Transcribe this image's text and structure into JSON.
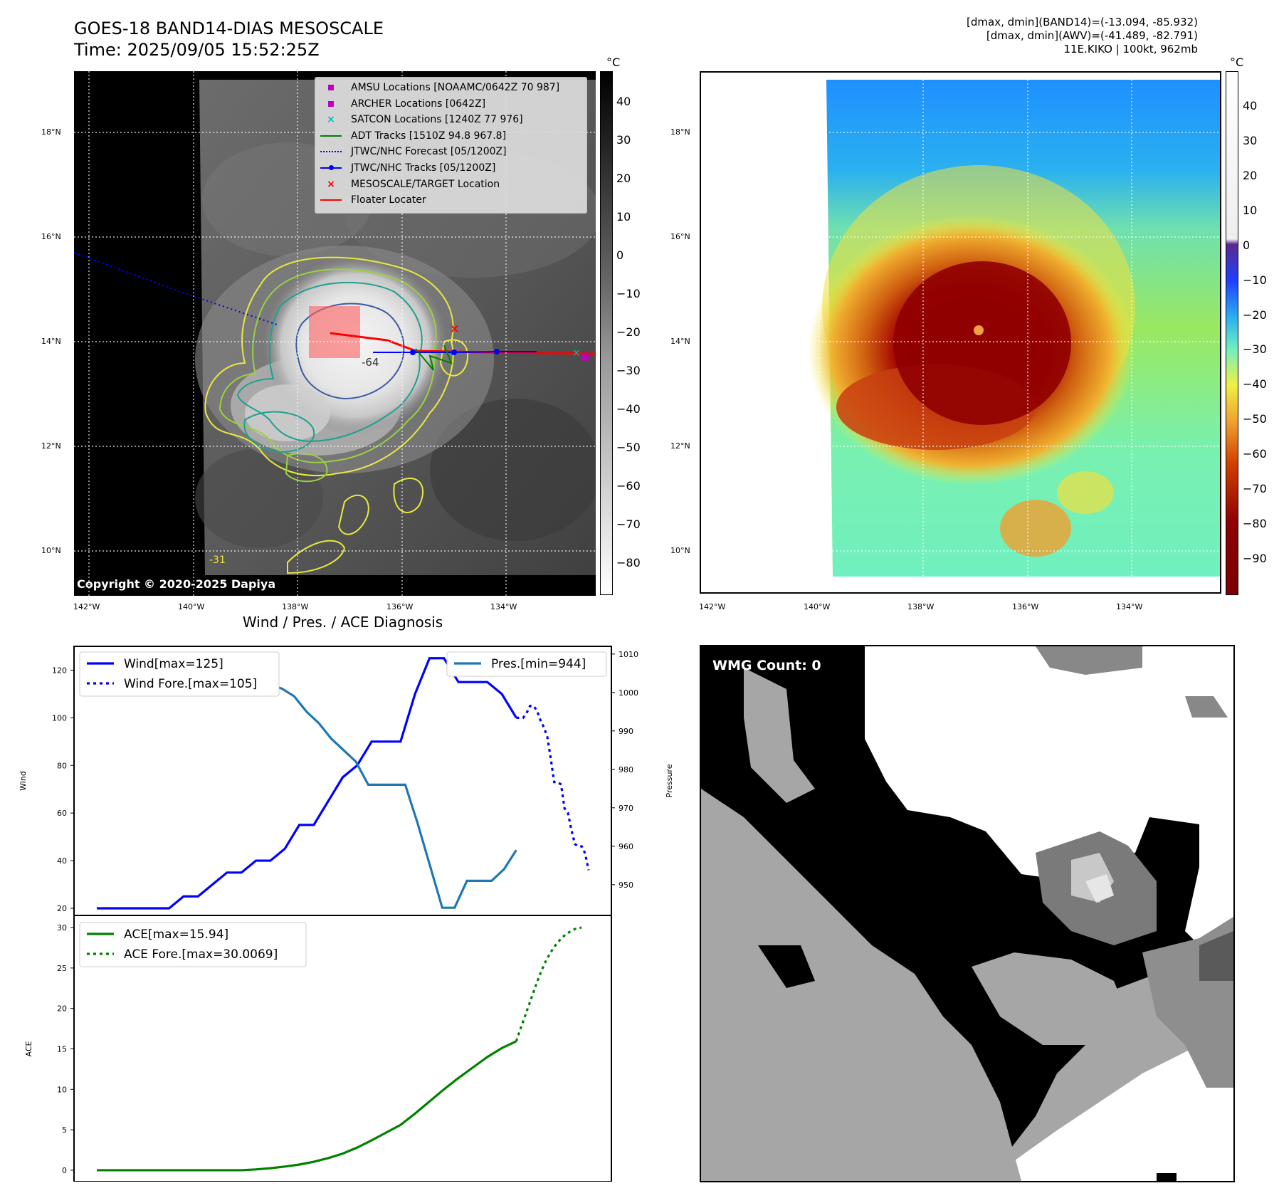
{
  "header": {
    "title_line1": "GOES-18 BAND14-DIAS MESOSCALE",
    "title_line2": "Time: 2025/09/05 15:52:25Z",
    "info_line1": "[dmax, dmin](BAND14)=(-13.094, -85.932)",
    "info_line2": "[dmax, dmin](AWV)=(-41.489, -82.791)",
    "info_line3": "11E.KIKO | 100kt, 962mb"
  },
  "maps": {
    "lon_ticks": [
      "142°W",
      "140°W",
      "138°W",
      "136°W",
      "134°W"
    ],
    "lat_ticks": [
      "18°N",
      "16°N",
      "14°N",
      "12°N",
      "10°N"
    ],
    "copyright": "Copyright © 2020-2025 Dapiya",
    "legend": [
      {
        "label": "AMSU Locations [NOAAMC/0642Z 70 987]",
        "color": "#c000c0",
        "marker": "square"
      },
      {
        "label": "ARCHER Locations [0642Z]",
        "color": "#c000c0",
        "marker": "square"
      },
      {
        "label": "SATCON Locations [1240Z 77 976]",
        "color": "#00bfbf",
        "marker": "x"
      },
      {
        "label": "ADT Tracks [1510Z 94.8 967.8]",
        "color": "#008000",
        "marker": "line"
      },
      {
        "label": "JTWC/NHC Forecast [05/1200Z]",
        "color": "#0000ff",
        "marker": "dotted"
      },
      {
        "label": "JTWC/NHC Tracks [05/1200Z]",
        "color": "#0000ff",
        "marker": "line-dot"
      },
      {
        "label": "MESOSCALE/TARGET Location",
        "color": "#ff0000",
        "marker": "x"
      },
      {
        "label": "Floater Locater",
        "color": "#ff0000",
        "marker": "line"
      }
    ],
    "contour_labels": [
      "-64",
      "-31"
    ],
    "colorbar_left": {
      "unit": "°C",
      "ticks": [
        "40",
        "30",
        "20",
        "10",
        "0",
        "−10",
        "−20",
        "−30",
        "−40",
        "−50",
        "−60",
        "−70",
        "−80"
      ]
    },
    "colorbar_right": {
      "unit": "°C",
      "ticks": [
        "40",
        "30",
        "20",
        "10",
        "0",
        "−10",
        "−20",
        "−30",
        "−40",
        "−50",
        "−60",
        "−70",
        "−80",
        "−90"
      ]
    }
  },
  "wmg": {
    "label": "WMG Count: 0"
  },
  "chart_data": [
    {
      "type": "line",
      "title": "Wind / Pres. / ACE Diagnosis",
      "ylabel": "Wind",
      "ylim": [
        17,
        130
      ],
      "yticks": [
        20,
        40,
        60,
        80,
        100,
        120
      ],
      "y2label": "Pressure",
      "y2lim": [
        942,
        1012
      ],
      "y2ticks": [
        950,
        960,
        970,
        980,
        990,
        1000,
        1010
      ],
      "legend": [
        "Wind[max=125]",
        "Wind Fore.[max=105]",
        "Pres.[min=944]"
      ],
      "series": [
        {
          "name": "Wind[max=125]",
          "axis": "left",
          "style": "solid",
          "color": "#0000ff",
          "values": [
            20,
            20,
            20,
            20,
            20,
            20,
            25,
            25,
            30,
            35,
            35,
            40,
            40,
            45,
            55,
            55,
            65,
            75,
            80,
            90,
            90,
            90,
            110,
            125,
            125,
            115,
            115,
            115,
            110,
            100
          ]
        },
        {
          "name": "Wind Fore.[max=105]",
          "axis": "left",
          "style": "dotted",
          "color": "#0000ff",
          "values": [
            100,
            100,
            100,
            102,
            105,
            105,
            103,
            99,
            96,
            92,
            83,
            73,
            73,
            72,
            62,
            60,
            53,
            47,
            46,
            46,
            43,
            36
          ]
        },
        {
          "name": "Pres.[min=944]",
          "axis": "right",
          "style": "solid",
          "color": "#1f77b4",
          "values": [
            1010,
            1010,
            1010,
            1010,
            1010,
            1010,
            1010,
            1010,
            1010,
            1010,
            1009,
            1008,
            1007,
            1005,
            1002,
            1001,
            999,
            995,
            992,
            988,
            985,
            982,
            976,
            976,
            976,
            976,
            966,
            955,
            944,
            944,
            951,
            951,
            951,
            954,
            959
          ]
        }
      ]
    },
    {
      "type": "line",
      "ylabel": "ACE",
      "ylim": [
        -1.5,
        31.5
      ],
      "yticks": [
        0,
        5,
        10,
        15,
        20,
        25,
        30
      ],
      "legend": [
        "ACE[max=15.94]",
        "ACE Fore.[max=30.0069]"
      ],
      "series": [
        {
          "name": "ACE[max=15.94]",
          "style": "solid",
          "color": "#008000",
          "values": [
            0,
            0,
            0,
            0,
            0,
            0,
            0,
            0,
            0,
            0,
            0,
            0.1,
            0.25,
            0.45,
            0.7,
            1.05,
            1.5,
            2.05,
            2.8,
            3.7,
            4.65,
            5.6,
            7.0,
            8.5,
            10.0,
            11.4,
            12.7,
            14.0,
            15.1,
            15.94
          ]
        },
        {
          "name": "ACE Fore.[max=30.0069]",
          "style": "dotted",
          "color": "#008000",
          "values": [
            15.94,
            17.2,
            18.4,
            19.6,
            20.8,
            22.0,
            23.2,
            24.3,
            25.3,
            26.2,
            26.9,
            27.6,
            28.1,
            28.6,
            29.0,
            29.3,
            29.6,
            29.8,
            29.9,
            30.0069
          ]
        }
      ]
    }
  ]
}
